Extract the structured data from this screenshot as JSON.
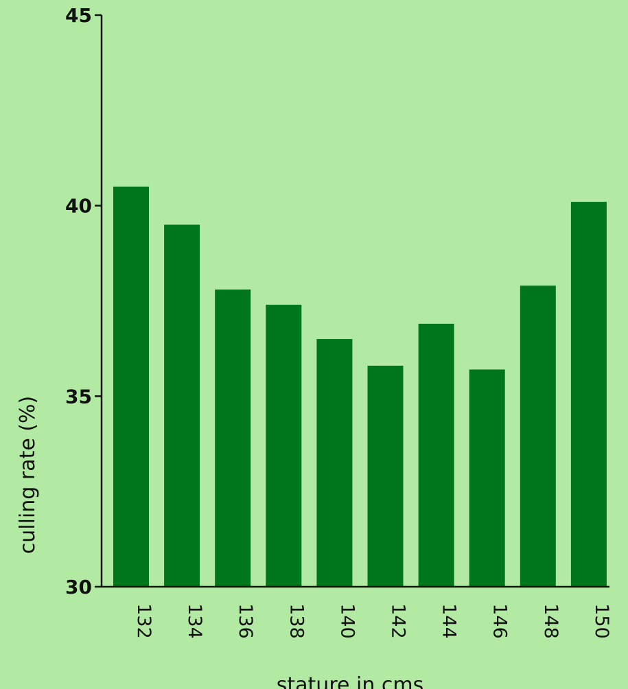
{
  "chart_data": {
    "type": "bar",
    "categories": [
      "132",
      "134",
      "136",
      "138",
      "140",
      "142",
      "144",
      "146",
      "148",
      "150"
    ],
    "values": [
      40.5,
      39.5,
      37.8,
      37.4,
      36.5,
      35.8,
      36.9,
      35.7,
      37.9,
      40.1
    ],
    "xlabel": "stature in cms",
    "ylabel": "culling rate (%)",
    "ylim": [
      30,
      45
    ],
    "yticks": [
      "30",
      "35",
      "40",
      "45"
    ],
    "grid": false,
    "bar_color": "#00761a",
    "background_color": "#b3eaa3"
  }
}
